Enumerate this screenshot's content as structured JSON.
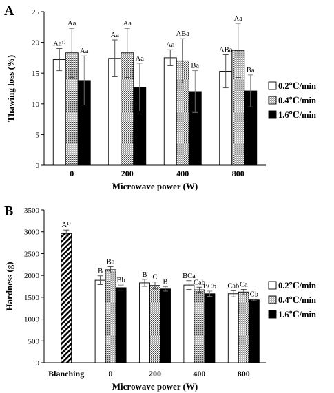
{
  "chart_data": [
    {
      "panel": "A",
      "type": "bar",
      "ylabel": "Thawing loss (%)",
      "xlabel": "Microwave power (W)",
      "ylim": [
        0,
        25
      ],
      "yticks": [
        "0",
        "5",
        "10",
        "15",
        "20",
        "25"
      ],
      "categories": [
        "0",
        "200",
        "400",
        "800"
      ],
      "series": [
        {
          "name": "0.2℃/min",
          "values": [
            17.2,
            17.4,
            17.5,
            15.3
          ],
          "errors": [
            1.8,
            3.0,
            1.3,
            2.7
          ],
          "labels": [
            "Aa¹⁾",
            "Aa",
            "Aa",
            "ABa"
          ],
          "pattern": "white"
        },
        {
          "name": "0.4℃/min",
          "values": [
            18.3,
            18.3,
            17.0,
            18.7
          ],
          "errors": [
            4.0,
            4.0,
            3.6,
            4.4
          ],
          "labels": [
            "Aa",
            "Aa",
            "ABa",
            "Aa"
          ],
          "pattern": "dots"
        },
        {
          "name": "1.6℃/min",
          "values": [
            13.8,
            12.7,
            12.0,
            12.1
          ],
          "errors": [
            4.0,
            3.9,
            3.4,
            2.6
          ],
          "labels": [
            "Aa",
            "Aa",
            "Ba",
            "Ba"
          ],
          "pattern": "black"
        }
      ],
      "legend": "right"
    },
    {
      "panel": "B",
      "type": "bar",
      "ylabel": "Hardness (g)",
      "xlabel": "Microwave power (W)",
      "ylim": [
        0,
        3500
      ],
      "yticks": [
        "0",
        "500",
        "1000",
        "1500",
        "2000",
        "2500",
        "3000",
        "3500"
      ],
      "categories": [
        "Blanching",
        "0",
        "200",
        "400",
        "800"
      ],
      "extra_bar": {
        "category": "Blanching",
        "value": 2960,
        "error": 80,
        "label": "A¹⁾",
        "pattern": "hatch"
      },
      "series": [
        {
          "name": "0.2℃/min",
          "values": [
            null,
            1890,
            1830,
            1780,
            1580
          ],
          "errors": [
            null,
            100,
            80,
            100,
            70
          ],
          "labels": [
            "",
            "B",
            "B",
            "BCa",
            "Cab"
          ],
          "pattern": "white"
        },
        {
          "name": "0.4℃/min",
          "values": [
            null,
            2130,
            1770,
            1670,
            1620
          ],
          "errors": [
            null,
            70,
            80,
            60,
            60
          ],
          "labels": [
            "",
            "Ba",
            "C",
            "Cab",
            "Ca"
          ],
          "pattern": "dots"
        },
        {
          "name": "1.6℃/min",
          "values": [
            null,
            1720,
            1690,
            1580,
            1440
          ],
          "errors": [
            null,
            60,
            50,
            60,
            20
          ],
          "labels": [
            "",
            "Bb",
            "B",
            "BCb",
            "Cb"
          ],
          "pattern": "black"
        }
      ],
      "legend": "right"
    }
  ]
}
